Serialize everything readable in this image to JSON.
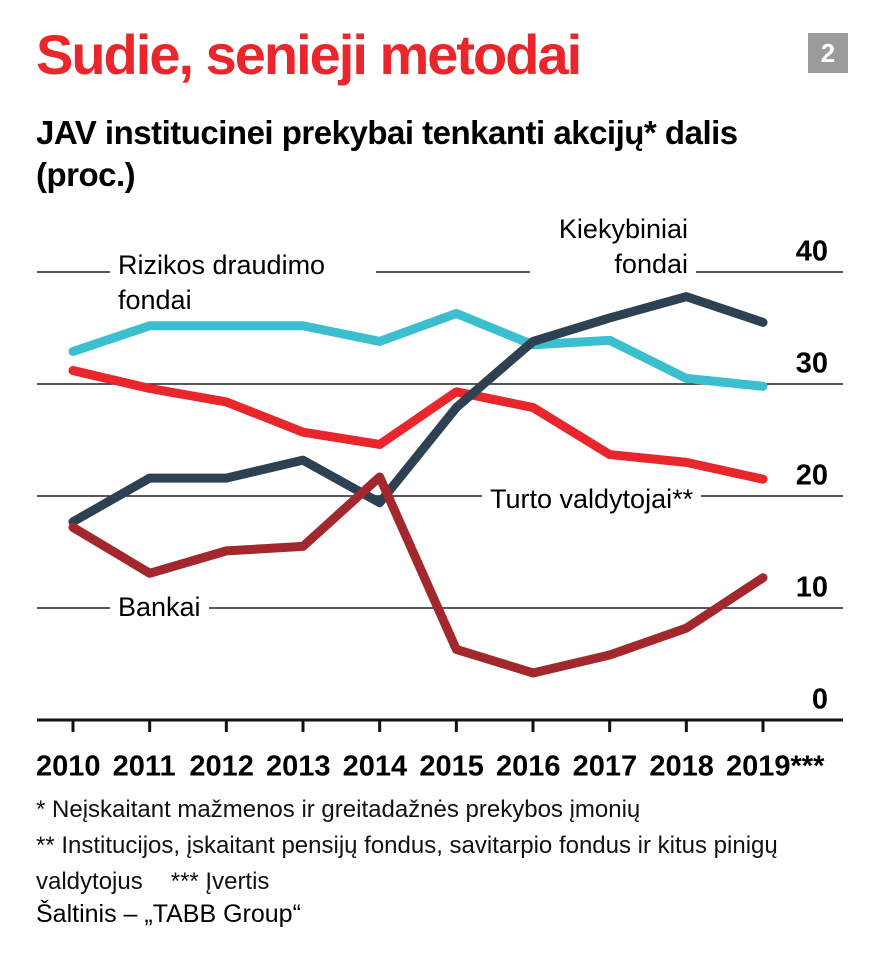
{
  "chart_data": {
    "type": "line",
    "title": "Sudie, senieji metodai",
    "badge": "2",
    "subtitle": "JAV institucinei prekybai tenkanti akcijų* dalis (proc.)",
    "categories": [
      "2010",
      "2011",
      "2012",
      "2013",
      "2014",
      "2015",
      "2016",
      "2017",
      "2018",
      "2019***"
    ],
    "series": [
      {
        "name": "Rizikos draudimo fondai",
        "color": "#3bbfcf",
        "values": [
          32.9,
          35.2,
          35.2,
          35.2,
          33.8,
          36.3,
          33.5,
          33.9,
          30.5,
          29.8
        ]
      },
      {
        "name": "Turto valdytojai**",
        "color": "#e8262b",
        "values": [
          31.2,
          29.6,
          28.4,
          25.7,
          24.6,
          29.3,
          27.9,
          23.7,
          23.0,
          21.5
        ]
      },
      {
        "name": "Kiekybiniai fondai",
        "color": "#2d4152",
        "values": [
          17.7,
          21.6,
          21.6,
          23.2,
          19.4,
          27.9,
          33.8,
          35.9,
          37.8,
          35.5
        ]
      },
      {
        "name": "Bankai",
        "color": "#a3282d",
        "values": [
          17.2,
          13.1,
          15.1,
          15.5,
          21.7,
          6.3,
          4.2,
          5.8,
          8.2,
          12.7
        ]
      }
    ],
    "ylim": [
      0,
      40
    ],
    "yticks": [
      0,
      10,
      20,
      30,
      40
    ],
    "grid": true,
    "notes": [
      "* Neįskaitant mažmenos ir greitadažnės prekybos įmonių",
      "** Institucijos, įskaitant pensijų fondus, savitarpio fondus ir kitus pinigų valdytojus",
      "*** Įvertis"
    ],
    "source": "Šaltinis – „TABB Group“"
  }
}
